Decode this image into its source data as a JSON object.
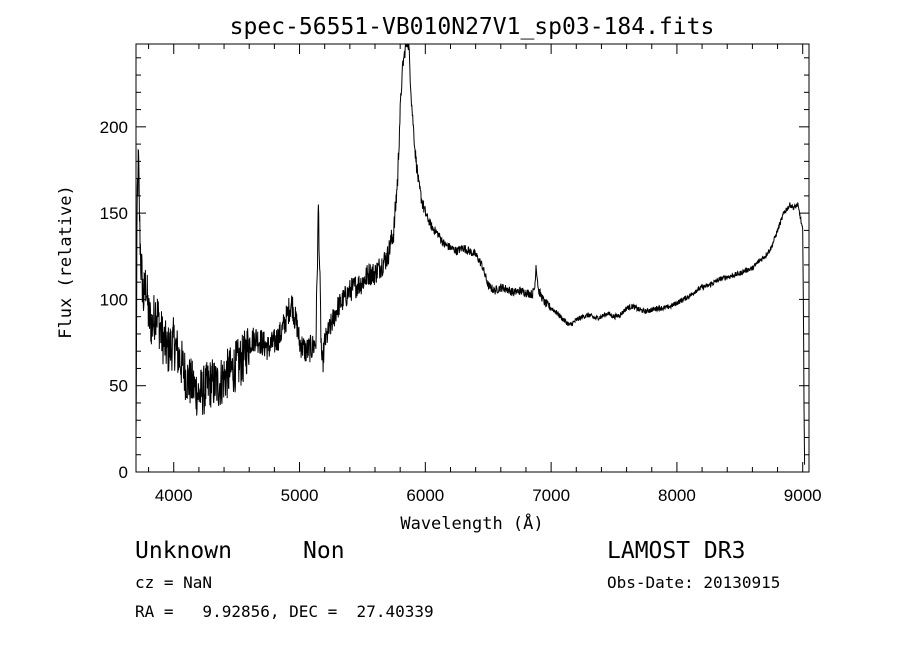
{
  "chart_data": {
    "type": "line",
    "title": "spec-56551-VB010N27V1_sp03-184.fits",
    "xlabel": "Wavelength (Å)",
    "ylabel": "Flux (relative)",
    "xlim": [
      3700,
      9050
    ],
    "ylim": [
      0,
      248
    ],
    "xticks": [
      4000,
      5000,
      6000,
      7000,
      8000,
      9000
    ],
    "yticks": [
      0,
      50,
      100,
      150,
      200
    ],
    "xtick_labels": [
      "4000",
      "5000",
      "6000",
      "7000",
      "8000",
      "9000"
    ],
    "ytick_labels": [
      "0",
      "50",
      "100",
      "150",
      "200"
    ],
    "grid": false,
    "series": [
      {
        "x": [
          3700,
          3710,
          3720,
          3730,
          3740,
          3760,
          3780,
          3800,
          3830,
          3860,
          3900,
          3950,
          4000,
          4050,
          4100,
          4150,
          4200,
          4250,
          4300,
          4350,
          4400,
          4450,
          4500,
          4550,
          4600,
          4650,
          4700,
          4750,
          4800,
          4850,
          4900,
          4920,
          4940,
          4960,
          4980,
          5000,
          5050,
          5100,
          5130,
          5150,
          5170,
          5180,
          5200,
          5250,
          5300,
          5350,
          5400,
          5450,
          5500,
          5550,
          5600,
          5650,
          5700,
          5750,
          5780,
          5800,
          5820,
          5840,
          5860,
          5870,
          5880,
          5890,
          5900,
          5920,
          5950,
          5980,
          6000,
          6050,
          6100,
          6150,
          6200,
          6250,
          6300,
          6350,
          6400,
          6450,
          6500,
          6550,
          6600,
          6650,
          6700,
          6750,
          6800,
          6850,
          6870,
          6880,
          6900,
          6950,
          7000,
          7050,
          7100,
          7150,
          7200,
          7250,
          7300,
          7350,
          7400,
          7450,
          7500,
          7550,
          7600,
          7650,
          7700,
          7750,
          7800,
          7850,
          7900,
          7950,
          8000,
          8050,
          8100,
          8150,
          8200,
          8250,
          8300,
          8350,
          8400,
          8450,
          8500,
          8550,
          8600,
          8650,
          8700,
          8750,
          8800,
          8850,
          8900,
          8930,
          8960,
          8980,
          9000,
          9005,
          9010,
          9015
        ],
        "y": [
          15,
          160,
          180,
          140,
          120,
          100,
          110,
          90,
          85,
          95,
          80,
          70,
          75,
          65,
          55,
          50,
          45,
          48,
          52,
          50,
          55,
          58,
          62,
          65,
          75,
          78,
          75,
          72,
          75,
          80,
          90,
          95,
          98,
          90,
          85,
          75,
          70,
          72,
          75,
          155,
          80,
          60,
          75,
          85,
          95,
          100,
          105,
          108,
          110,
          115,
          115,
          120,
          125,
          140,
          170,
          210,
          235,
          245,
          250,
          245,
          230,
          215,
          205,
          185,
          165,
          155,
          150,
          142,
          138,
          132,
          130,
          128,
          130,
          128,
          126,
          120,
          108,
          105,
          107,
          106,
          104,
          105,
          104,
          103,
          107,
          120,
          105,
          98,
          95,
          92,
          88,
          85,
          88,
          90,
          91,
          89,
          90,
          92,
          90,
          91,
          95,
          96,
          94,
          93,
          94,
          95,
          95,
          96,
          98,
          100,
          102,
          105,
          107,
          108,
          110,
          112,
          113,
          114,
          115,
          117,
          118,
          122,
          125,
          130,
          140,
          150,
          155,
          153,
          155,
          148,
          140,
          100,
          40,
          5
        ]
      }
    ],
    "annotations": {
      "object_class": "Unknown",
      "object_subclass": "Non",
      "survey": "LAMOST DR3",
      "cz_label": "cz = NaN",
      "obs_date_label": "Obs-Date: 20130915",
      "radec_label": "RA =   9.92856, DEC =  27.40339"
    }
  }
}
